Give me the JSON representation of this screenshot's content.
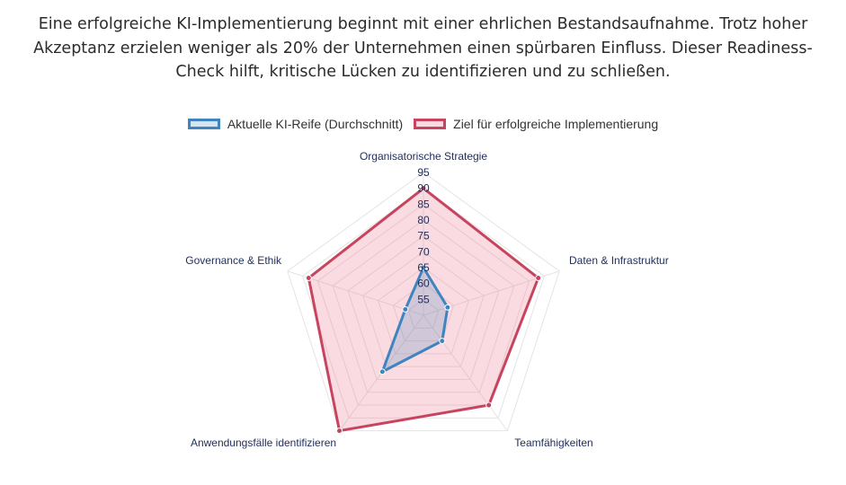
{
  "intro_text": "Eine erfolgreiche KI-Implementierung beginnt mit einer ehrlichen Bestandsaufnahme. Trotz hoher Akzeptanz erzielen weniger als 20% der Unternehmen einen spürbaren Einfluss. Dieser Readiness-Check hilft, kritische Lücken zu identifizieren und zu schließen.",
  "chart_data": {
    "type": "radar",
    "axes": [
      "Organisatorische Strategie",
      "Daten & Infrastruktur",
      "Teamfähigkeiten",
      "Anwendungsfälle identifizieren",
      "Governance & Ethik"
    ],
    "scale": {
      "min": 50,
      "max": 95,
      "step": 5,
      "ticks": [
        "55",
        "60",
        "65",
        "70",
        "75",
        "80",
        "85",
        "90",
        "95"
      ]
    },
    "series": [
      {
        "name": "Aktuelle KI-Reife (Durchschnitt)",
        "values": [
          65,
          58,
          60,
          72,
          56
        ],
        "stroke": "#3f84bf",
        "fill": "rgba(63,132,191,0.22)"
      },
      {
        "name": "Ziel für erfolgreiche Implementierung",
        "values": [
          90,
          88,
          85,
          95,
          88
        ],
        "stroke": "#c8435e",
        "fill": "rgba(232,110,135,0.25)"
      }
    ],
    "legend_position": "top"
  }
}
